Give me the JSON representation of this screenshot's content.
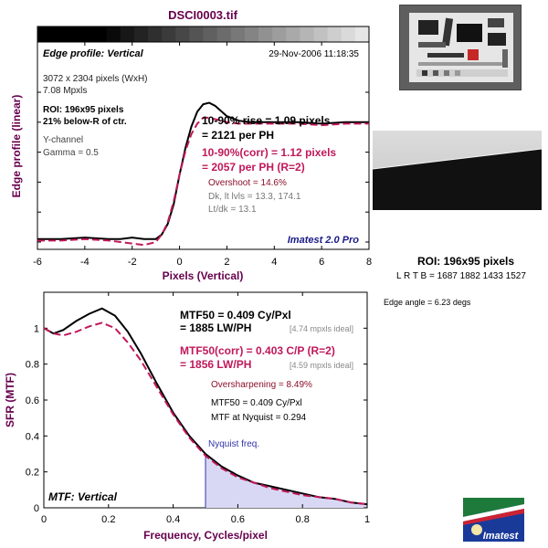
{
  "title": "DSCI0003.tif",
  "edge_panel": {
    "heading": "Edge profile: Vertical",
    "timestamp": "29-Nov-2006 11:18:35",
    "image_size": "3072 x 2304 pixels (WxH)",
    "megapixels": "7.08 Mpxls",
    "roi": "ROI: 196x95 pixels",
    "roi_position": "21% below-R of ctr.",
    "channel": "Y-channel",
    "gamma": "Gamma = 0.5",
    "rise": "10-90% rise = 1.09 pixels",
    "rise_ph": "= 2121 per PH",
    "rise_corr": "10-90%(corr) = 1.12 pixels",
    "rise_corr_ph": "= 2057 per PH  (R=2)",
    "overshoot": "Overshoot = 14.6%",
    "levels": "Dk, lt lvls = 13.3, 174.1",
    "ltdk": "Lt/dk = 13.1",
    "watermark": "Imatest 2.0 Pro"
  },
  "mtf_panel": {
    "heading": "MTF: Vertical",
    "mtf50": "MTF50 = 0.409 Cy/Pxl",
    "mtf50_lw": "= 1885 LW/PH",
    "mtf50_ideal": "[4.74 mpxls ideal]",
    "mtf50_corr": "MTF50(corr) = 0.403 C/P  (R=2)",
    "mtf50_corr_lw": "= 1856 LW/PH",
    "mtf50_corr_ideal": "[4.59 mpxls ideal]",
    "oversharpening": "Oversharpening = 8.49%",
    "mtf50_small": "MTF50 = 0.409 Cy/Pxl",
    "nyquist_mtf": "MTF at Nyquist = 0.294",
    "nyquist_label": "Nyquist freq."
  },
  "side": {
    "roi": "ROI: 196x95 pixels",
    "lrtb": "L R  T B = 1687 1882  1433 1527",
    "edge_angle": "Edge angle = 6.23 degs",
    "logo_text": "Imatest"
  },
  "colors": {
    "measured": "#000000",
    "corrected": "#c0185a",
    "nyquist_fill": "#d8d8f4",
    "nyquist_text": "#3333aa",
    "axis_label": "#66004d"
  },
  "chart_data": [
    {
      "type": "line",
      "title": "Edge profile: Vertical",
      "xlabel": "Pixels (Vertical)",
      "ylabel": "Edge profile (linear)",
      "xlim": [
        -6,
        8
      ],
      "ylim": [
        0,
        1
      ],
      "xticks": [
        -6,
        -4,
        -2,
        0,
        2,
        4,
        6,
        8
      ],
      "grid": false,
      "x": [
        -6,
        -5,
        -4,
        -3,
        -2.5,
        -2,
        -1.5,
        -1,
        -0.75,
        -0.5,
        -0.25,
        0,
        0.25,
        0.5,
        0.75,
        1,
        1.25,
        1.5,
        2,
        2.5,
        3,
        4,
        5,
        6,
        7,
        8
      ],
      "series": [
        {
          "values": [
            0.02,
            0.02,
            0.03,
            0.02,
            0.02,
            0.03,
            0.02,
            0.02,
            0.05,
            0.12,
            0.25,
            0.45,
            0.63,
            0.77,
            0.87,
            0.92,
            0.93,
            0.91,
            0.84,
            0.81,
            0.8,
            0.8,
            0.8,
            0.79,
            0.8,
            0.8
          ]
        },
        {
          "values": [
            0.01,
            0.01,
            0.02,
            0.01,
            0.0,
            -0.01,
            -0.02,
            0.0,
            0.05,
            0.13,
            0.27,
            0.45,
            0.61,
            0.72,
            0.79,
            0.83,
            0.83,
            0.82,
            0.8,
            0.79,
            0.79,
            0.79,
            0.79,
            0.78,
            0.79,
            0.79
          ]
        }
      ]
    },
    {
      "type": "line",
      "title": "MTF: Vertical",
      "xlabel": "Frequency, Cycles/pixel",
      "ylabel": "SFR (MTF)",
      "xlim": [
        0,
        1
      ],
      "ylim": [
        0,
        1.2
      ],
      "xticks": [
        0,
        0.2,
        0.4,
        0.6,
        0.8,
        1
      ],
      "yticks": [
        0,
        0.2,
        0.4,
        0.6,
        0.8,
        1
      ],
      "grid": false,
      "nyquist": 0.5,
      "x": [
        0,
        0.03,
        0.06,
        0.1,
        0.14,
        0.18,
        0.22,
        0.26,
        0.3,
        0.35,
        0.4,
        0.45,
        0.5,
        0.55,
        0.6,
        0.65,
        0.7,
        0.75,
        0.8,
        0.85,
        0.9,
        0.95,
        1.0
      ],
      "series": [
        {
          "values": [
            1.0,
            0.97,
            0.99,
            1.04,
            1.08,
            1.11,
            1.07,
            0.98,
            0.86,
            0.69,
            0.53,
            0.4,
            0.3,
            0.23,
            0.18,
            0.14,
            0.12,
            0.1,
            0.08,
            0.06,
            0.05,
            0.03,
            0.02
          ]
        },
        {
          "values": [
            1.0,
            0.97,
            0.96,
            0.98,
            1.01,
            1.03,
            1.0,
            0.92,
            0.82,
            0.67,
            0.52,
            0.39,
            0.29,
            0.22,
            0.17,
            0.14,
            0.11,
            0.09,
            0.07,
            0.06,
            0.05,
            0.03,
            0.02
          ]
        }
      ]
    }
  ]
}
